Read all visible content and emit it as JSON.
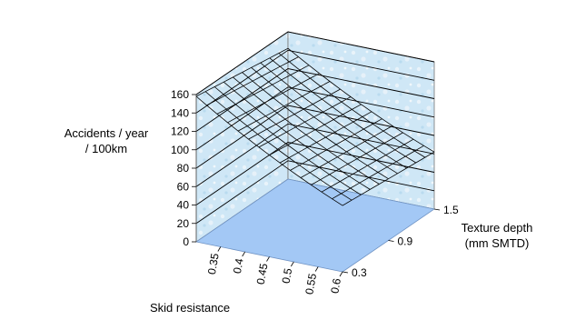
{
  "chart_data": {
    "type": "surface3d",
    "title": "",
    "ylabel_lines": [
      "Accidents / year",
      "/ 100km"
    ],
    "xlabel": "Skid resistance",
    "zlabel_lines": [
      "Texture depth",
      "(mm SMTD)"
    ],
    "y_ticks": [
      "0",
      "20",
      "40",
      "60",
      "80",
      "100",
      "120",
      "140",
      "160"
    ],
    "y_range": [
      0,
      160
    ],
    "x_ticks": [
      "0.35",
      "0.4",
      "0.45",
      "0.5",
      "0.55",
      "0.6"
    ],
    "x_range": [
      0.3,
      0.6
    ],
    "z_ticks": [
      "0.3",
      "0.9",
      "1.5"
    ],
    "z_range": [
      0.3,
      1.5
    ],
    "surface_corners": {
      "skid_0.30_texture_0.3": 158,
      "skid_0.30_texture_1.5": 142,
      "skid_0.60_texture_0.3": 72,
      "skid_0.60_texture_1.5": 62
    },
    "colors": {
      "wall": "#cfe7f6",
      "floor": "#a3c8f5",
      "mesh": "#000000",
      "gridline": "#000000"
    }
  }
}
